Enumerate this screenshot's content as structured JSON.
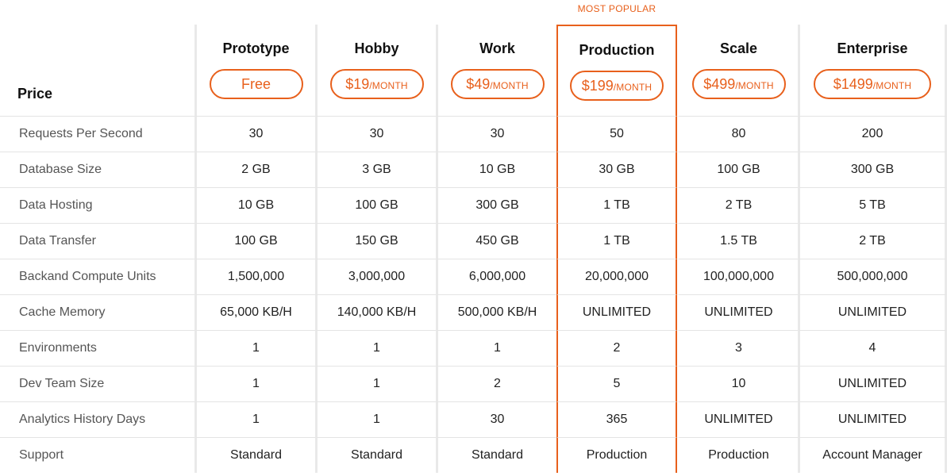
{
  "popular_label": "MOST POPULAR",
  "row_header_title": "Price",
  "plans": [
    {
      "name": "Prototype",
      "price": "Free",
      "per": ""
    },
    {
      "name": "Hobby",
      "price": "$19",
      "per": "/MONTH"
    },
    {
      "name": "Work",
      "price": "$49",
      "per": "/MONTH"
    },
    {
      "name": "Production",
      "price": "$199",
      "per": "/MONTH",
      "highlight": true
    },
    {
      "name": "Scale",
      "price": "$499",
      "per": "/MONTH"
    },
    {
      "name": "Enterprise",
      "price": "$1499",
      "per": "/MONTH"
    }
  ],
  "rows": [
    {
      "label": "Requests Per Second",
      "values": [
        "30",
        "30",
        "30",
        "50",
        "80",
        "200"
      ]
    },
    {
      "label": "Database Size",
      "values": [
        "2 GB",
        "3 GB",
        "10 GB",
        "30 GB",
        "100 GB",
        "300 GB"
      ]
    },
    {
      "label": "Data Hosting",
      "values": [
        "10 GB",
        "100 GB",
        "300 GB",
        "1 TB",
        "2 TB",
        "5 TB"
      ]
    },
    {
      "label": "Data Transfer",
      "values": [
        "100 GB",
        "150 GB",
        "450 GB",
        "1 TB",
        "1.5 TB",
        "2 TB"
      ]
    },
    {
      "label": "Backand Compute Units",
      "values": [
        "1,500,000",
        "3,000,000",
        "6,000,000",
        "20,000,000",
        "100,000,000",
        "500,000,000"
      ]
    },
    {
      "label": "Cache Memory",
      "values": [
        "65,000 KB/H",
        "140,000 KB/H",
        "500,000 KB/H",
        "UNLIMITED",
        "UNLIMITED",
        "UNLIMITED"
      ]
    },
    {
      "label": "Environments",
      "values": [
        "1",
        "1",
        "1",
        "2",
        "3",
        "4"
      ]
    },
    {
      "label": "Dev Team Size",
      "values": [
        "1",
        "1",
        "2",
        "5",
        "10",
        "UNLIMITED"
      ]
    },
    {
      "label": "Analytics History Days",
      "values": [
        "1",
        "1",
        "30",
        "365",
        "UNLIMITED",
        "UNLIMITED"
      ]
    },
    {
      "label": "Support",
      "values": [
        "Standard",
        "Standard",
        "Standard",
        "Production",
        "Production",
        "Account Manager"
      ]
    }
  ],
  "colors": {
    "accent": "#e8601c",
    "divider": "#e9e9e9",
    "row_line": "#e4e4e4"
  }
}
